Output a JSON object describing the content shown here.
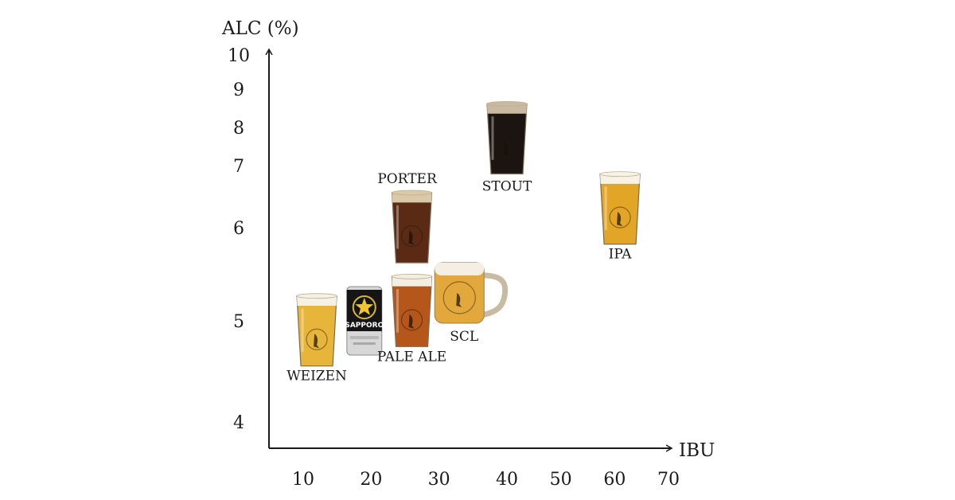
{
  "chart_data": {
    "type": "scatter",
    "title": "",
    "xlabel": "IBU",
    "ylabel": "ALC (%)",
    "x_ticks": [
      "10",
      "20",
      "30",
      "40",
      "50",
      "60",
      "70"
    ],
    "y_ticks": [
      "4",
      "5",
      "6",
      "7",
      "8",
      "9",
      "10"
    ],
    "xlim": [
      5,
      72
    ],
    "ylim": [
      3.5,
      10
    ],
    "grid": false,
    "legend": "none",
    "points": [
      {
        "label": "WEIZEN",
        "x": 12,
        "y": 4.9,
        "glass": "pint",
        "beer_color": "#e7b53a",
        "head_color": "#f5f1e4"
      },
      {
        "label": "",
        "x": 19,
        "y": 5.0,
        "glass": "can",
        "beer_color": "#d9d9d9",
        "head_color": "#ffffff"
      },
      {
        "label": "PALE ALE",
        "x": 26,
        "y": 5.1,
        "glass": "pint",
        "beer_color": "#b5561a",
        "head_color": "#f3eee2"
      },
      {
        "label": "PORTER",
        "x": 26,
        "y": 6.0,
        "glass": "pint",
        "beer_color": "#5a2a14",
        "head_color": "#d9c9a8"
      },
      {
        "label": "SCL",
        "x": 33,
        "y": 5.3,
        "glass": "mug",
        "beer_color": "#e2a83c",
        "head_color": "#f4efe2"
      },
      {
        "label": "STOUT",
        "x": 40,
        "y": 7.7,
        "glass": "pint",
        "beer_color": "#1c1410",
        "head_color": "#c9b9a0"
      },
      {
        "label": "IPA",
        "x": 61,
        "y": 6.3,
        "glass": "pint",
        "beer_color": "#e3a526",
        "head_color": "#f6f2e6"
      }
    ],
    "can_text": "SAPPORO"
  }
}
